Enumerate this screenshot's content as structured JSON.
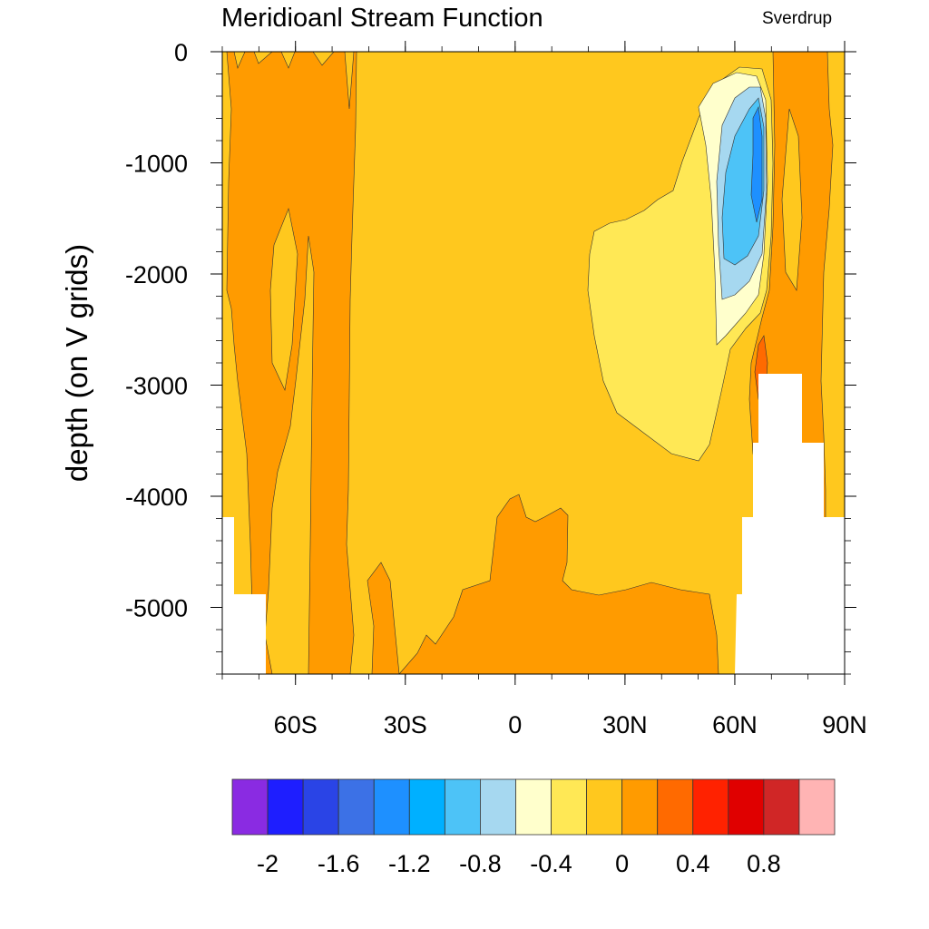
{
  "chart_data": {
    "type": "contour",
    "title": "Meridioanl Stream Function",
    "units": "Sverdrup",
    "ylabel": "depth (on V grids)",
    "xlabel": "",
    "xlim": [
      -80,
      90
    ],
    "ylim": [
      -5600,
      0
    ],
    "x_ticks": [
      {
        "value": -60,
        "label": "60S"
      },
      {
        "value": -30,
        "label": "30S"
      },
      {
        "value": 0,
        "label": "0"
      },
      {
        "value": 30,
        "label": "30N"
      },
      {
        "value": 60,
        "label": "60N"
      },
      {
        "value": 90,
        "label": "90N"
      }
    ],
    "y_ticks": [
      {
        "value": 0,
        "label": "0"
      },
      {
        "value": -1000,
        "label": "-1000"
      },
      {
        "value": -2000,
        "label": "-2000"
      },
      {
        "value": -3000,
        "label": "-3000"
      },
      {
        "value": -4000,
        "label": "-4000"
      },
      {
        "value": -5000,
        "label": "-5000"
      }
    ],
    "colorbar": {
      "colors": [
        "#8a2be2",
        "#1e1eff",
        "#2a44e6",
        "#3c71e6",
        "#1e90ff",
        "#00b0ff",
        "#4dc3f7",
        "#a6d8f0",
        "#ffffcc",
        "#ffe855",
        "#ffc81e",
        "#ff9b00",
        "#ff6a00",
        "#ff2200",
        "#e00000",
        "#d02626",
        "#ffb4b4"
      ],
      "levels": [
        -2,
        -1.8,
        -1.6,
        -1.4,
        -1.2,
        -1.0,
        -0.8,
        -0.6,
        -0.4,
        -0.2,
        0,
        0.2,
        0.4,
        0.6,
        0.8,
        1.0
      ],
      "labels": [
        {
          "value": -2,
          "label": "-2"
        },
        {
          "value": -1.6,
          "label": "-1.6"
        },
        {
          "value": -1.2,
          "label": "-1.2"
        },
        {
          "value": -0.8,
          "label": "-0.8"
        },
        {
          "value": -0.4,
          "label": "-0.4"
        },
        {
          "value": 0,
          "label": "0"
        },
        {
          "value": 0.4,
          "label": "0.4"
        },
        {
          "value": 0.8,
          "label": "0.8"
        }
      ]
    },
    "regions": [
      {
        "level": "0 to 0.2",
        "color": "#ff9b00",
        "x_range": [
          -80,
          -55
        ],
        "y_range": [
          -5600,
          0
        ],
        "description": "Southern Ocean positive band"
      },
      {
        "level": "-0.2 to 0",
        "color": "#ffc81e",
        "x_range": [
          -80,
          90
        ],
        "y_range": [
          -5600,
          0
        ],
        "description": "background"
      },
      {
        "level": "-0.4 to -0.2",
        "color": "#ffe855",
        "x_range": [
          14,
          44
        ],
        "y_range": [
          -3700,
          -600
        ],
        "description": "northern negative lobe"
      },
      {
        "level": "-0.6 to -0.4",
        "color": "#ffffcc",
        "x_range": [
          38,
          54
        ],
        "y_range": [
          -2700,
          -200
        ]
      },
      {
        "level": "-0.8 to -0.6",
        "color": "#a6d8f0",
        "x_range": [
          46,
          56
        ],
        "y_range": [
          -2300,
          -300
        ]
      },
      {
        "level": "-1.0 to -0.8",
        "color": "#4dc3f7",
        "x_range": [
          50,
          56
        ],
        "y_range": [
          -1800,
          -500
        ]
      },
      {
        "level": "-1.2 to -1.0",
        "color": "#1e90ff",
        "x_range": [
          53,
          56
        ],
        "y_range": [
          -1500,
          -700
        ]
      },
      {
        "level": "0 to 0.2",
        "color": "#ff9b00",
        "x_range": [
          -20,
          52
        ],
        "y_range": [
          -5600,
          -4000
        ],
        "description": "bottom positive band"
      },
      {
        "level": "0 to 0.2",
        "color": "#ff9b00",
        "x_range": [
          60,
          78
        ],
        "y_range": [
          -3500,
          0
        ],
        "description": "Nordic positive band"
      },
      {
        "level": "0.2 to 0.4",
        "color": "#ff6a00",
        "x_range": [
          54,
          58
        ],
        "y_range": [
          -3500,
          -2600
        ]
      }
    ]
  }
}
